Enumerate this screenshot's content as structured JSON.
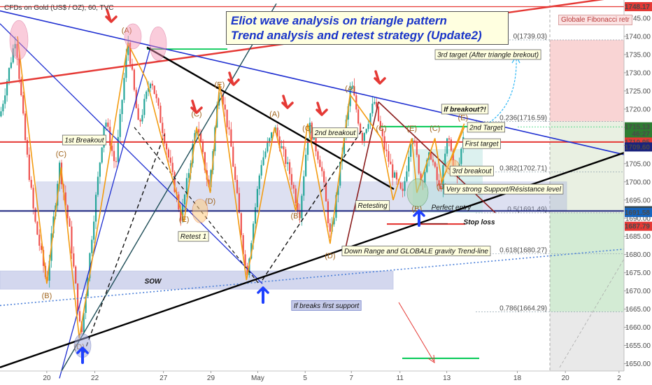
{
  "header": {
    "symbol": "CFDs on Gold (US$ / OZ), 60, TVC",
    "title_line1": "Eliot wave analysis on triangle pattern",
    "title_line2": "Trend analysis and retest strategy (Update2)",
    "fib_tool": "Globale Fibonacci retr"
  },
  "chart_data": {
    "type": "candlestick",
    "ylim": [
      1648,
      1750
    ],
    "y_ticks": [
      1650,
      1655,
      1660,
      1665,
      1670,
      1675,
      1680,
      1685,
      1690,
      1695,
      1700,
      1705,
      1710,
      1715,
      1720,
      1725,
      1730,
      1735,
      1740,
      1745
    ],
    "x_ticks": [
      {
        "label": "20",
        "t": 0.075
      },
      {
        "label": "22",
        "t": 0.152
      },
      {
        "label": "27",
        "t": 0.262
      },
      {
        "label": "29",
        "t": 0.338
      },
      {
        "label": "May",
        "t": 0.413
      },
      {
        "label": "5",
        "t": 0.489
      },
      {
        "label": "7",
        "t": 0.563
      },
      {
        "label": "11",
        "t": 0.641
      },
      {
        "label": "13",
        "t": 0.716
      },
      {
        "label": "18",
        "t": 0.829
      },
      {
        "label": "20",
        "t": 0.906
      },
      {
        "label": "2",
        "t": 0.992
      }
    ],
    "price_axis_tags": [
      {
        "value": 1748.17,
        "label": "1748.17",
        "color": "#e53935"
      },
      {
        "value": 1715.13,
        "label": "1715.13",
        "color": "#2e7d32"
      },
      {
        "value": 1713.2,
        "label": "46:27",
        "color": "#2e7d32"
      },
      {
        "value": 1710.95,
        "label": "1710.95",
        "color": "#e53935"
      },
      {
        "value": 1709.6,
        "label": "1709.60",
        "color": "#1a237e"
      },
      {
        "value": 1692.07,
        "label": "1692.07",
        "color": "#37474f"
      },
      {
        "value": 1691.58,
        "label": "1691.58",
        "color": "#1565c0"
      },
      {
        "value": 1687.79,
        "label": "1687.79",
        "color": "#e53935"
      }
    ],
    "fib_levels": [
      {
        "label": "0(1739.03)",
        "value": 1739.03
      },
      {
        "label": "0.236(1716.59)",
        "value": 1716.59
      },
      {
        "label": "0.382(1702.71)",
        "value": 1702.71
      },
      {
        "label": "0.5(1691.49)",
        "value": 1691.49
      },
      {
        "label": "0.618(1680.27)",
        "value": 1680.27
      },
      {
        "label": "0.786(1664.29)",
        "value": 1664.29
      }
    ],
    "price_path": [
      [
        0.0,
        1718
      ],
      [
        0.025,
        1740
      ],
      [
        0.04,
        1712
      ],
      [
        0.055,
        1690
      ],
      [
        0.075,
        1672
      ],
      [
        0.095,
        1705
      ],
      [
        0.112,
        1686
      ],
      [
        0.13,
        1657
      ],
      [
        0.15,
        1690
      ],
      [
        0.168,
        1718
      ],
      [
        0.185,
        1704
      ],
      [
        0.205,
        1739
      ],
      [
        0.222,
        1715
      ],
      [
        0.242,
        1729
      ],
      [
        0.265,
        1711
      ],
      [
        0.29,
        1690
      ],
      [
        0.315,
        1716
      ],
      [
        0.335,
        1698
      ],
      [
        0.352,
        1728
      ],
      [
        0.37,
        1710
      ],
      [
        0.395,
        1674
      ],
      [
        0.418,
        1705
      ],
      [
        0.44,
        1715
      ],
      [
        0.465,
        1702
      ],
      [
        0.48,
        1691
      ],
      [
        0.495,
        1716
      ],
      [
        0.515,
        1704
      ],
      [
        0.53,
        1684
      ],
      [
        0.545,
        1704
      ],
      [
        0.563,
        1727
      ],
      [
        0.58,
        1712
      ],
      [
        0.6,
        1722
      ],
      [
        0.615,
        1710
      ],
      [
        0.63,
        1702
      ],
      [
        0.645,
        1696
      ],
      [
        0.66,
        1714
      ],
      [
        0.675,
        1700
      ],
      [
        0.69,
        1708
      ],
      [
        0.705,
        1697
      ],
      [
        0.718,
        1713
      ],
      [
        0.732,
        1700
      ],
      [
        0.744,
        1715
      ]
    ],
    "waves": [
      {
        "label": "(A)",
        "t": 0.203,
        "v": 1741
      },
      {
        "label": "(B)",
        "t": 0.075,
        "v": 1668
      },
      {
        "label": "(C)",
        "t": 0.098,
        "v": 1707
      },
      {
        "label": "(D)",
        "t": 0.127,
        "v": 1654
      },
      {
        "label": "(E)",
        "t": 0.352,
        "v": 1726
      },
      {
        "label": "(C)",
        "t": 0.315,
        "v": 1718
      },
      {
        "label": "(E)",
        "t": 0.295,
        "v": 1689
      },
      {
        "label": "(D)",
        "t": 0.337,
        "v": 1694
      },
      {
        "label": "(A)",
        "t": 0.44,
        "v": 1718
      },
      {
        "label": "(C)",
        "t": 0.493,
        "v": 1714
      },
      {
        "label": "(B)",
        "t": 0.474,
        "v": 1690
      },
      {
        "label": "(D)",
        "t": 0.529,
        "v": 1679
      },
      {
        "label": "(A)",
        "t": 0.561,
        "v": 1725
      },
      {
        "label": "(C)",
        "t": 0.611,
        "v": 1714
      },
      {
        "label": "(E)",
        "t": 0.66,
        "v": 1714
      },
      {
        "label": "(C)",
        "t": 0.697,
        "v": 1714
      },
      {
        "label": "(B)",
        "t": 0.668,
        "v": 1692
      },
      {
        "label": "(D)",
        "t": 0.708,
        "v": 1698
      },
      {
        "label": "(E)",
        "t": 0.742,
        "v": 1717
      }
    ],
    "annotations": [
      {
        "id": "first-breakout",
        "text": "1st Breakout",
        "t": 0.135,
        "v": 1711.5
      },
      {
        "id": "retest-1",
        "text": "Retest 1",
        "t": 0.31,
        "v": 1685
      },
      {
        "id": "sow",
        "text": "SOW",
        "t": 0.245,
        "v": 1673
      },
      {
        "id": "if-breaks-first-support",
        "text": "If breaks first support",
        "t": 0.523,
        "v": 1666
      },
      {
        "id": "second-breakout",
        "text": "2nd breakout",
        "t": 0.537,
        "v": 1713.5
      },
      {
        "id": "retesting",
        "text": "Retesting",
        "t": 0.597,
        "v": 1693.5
      },
      {
        "id": "perfect-entry",
        "text": "Perfect entry",
        "t": 0.723,
        "v": 1693
      },
      {
        "id": "very-strong-support",
        "text": "Very strong Support/Résistance level",
        "t": 0.807,
        "v": 1698
      },
      {
        "id": "third-breakout",
        "text": "3rd breakout",
        "t": 0.756,
        "v": 1703
      },
      {
        "id": "first-target",
        "text": "First target",
        "t": 0.772,
        "v": 1710.5
      },
      {
        "id": "second-target",
        "text": "2nd Target",
        "t": 0.779,
        "v": 1715
      },
      {
        "id": "if-breakout",
        "text": "If breakout?!",
        "t": 0.745,
        "v": 1720
      },
      {
        "id": "third-target",
        "text": "3rd target (After triangle brekout)",
        "t": 0.782,
        "v": 1735
      },
      {
        "id": "stop-loss",
        "text": "Stop loss",
        "t": 0.768,
        "v": 1689
      },
      {
        "id": "down-range",
        "text": "Down Range and GLOBALE gravity Trend-line",
        "t": 0.667,
        "v": 1681
      }
    ],
    "colors": {
      "bull": "#26a69a",
      "bear": "#ef5350",
      "wave_line": "#f39c12",
      "triangle_line": "#1f2fd1",
      "trend_line": "#000000",
      "resistance": "#e53935",
      "target_line": "#00c853",
      "zone": "#9fa8da",
      "fib_red": "#f8c9c9",
      "fib_green": "#c8e6c9"
    }
  }
}
